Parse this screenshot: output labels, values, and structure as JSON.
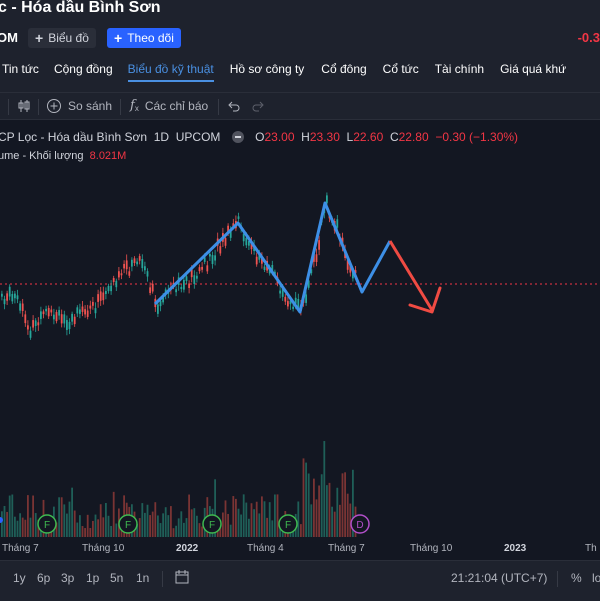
{
  "header": {
    "title": "c - Hóa dầu Bình Sơn",
    "ticker": "OM",
    "chart_button": "Biểu đồ",
    "follow_button": "Theo dõi",
    "change": "-0.3"
  },
  "tabs": [
    "Tin tức",
    "Cộng đồng",
    "Biểu đồ kỹ thuật",
    "Hồ sơ công ty",
    "Cổ đông",
    "Cổ tức",
    "Tài chính",
    "Giá quá khứ"
  ],
  "active_tab": "Biểu đồ kỹ thuật",
  "toolbar": {
    "compare": "So sánh",
    "indicators": "Các chỉ báo"
  },
  "legend": {
    "name": "CP Lọc - Hóa dầu Bình Sơn",
    "interval": "1D",
    "exchange": "UPCOM",
    "o_label": "O",
    "o": "23.00",
    "h_label": "H",
    "h": "23.30",
    "l_label": "L",
    "l": "22.60",
    "c_label": "C",
    "c": "22.80",
    "change": "−0.30 (−1.30%)",
    "volume_label": "ume - Khối lượng",
    "volume_value": "8.021M"
  },
  "xaxis": [
    "Tháng 7",
    "Tháng 10",
    "2022",
    "Tháng 4",
    "Tháng 7",
    "Tháng 10",
    "2023",
    "Th"
  ],
  "events": [
    "F",
    "F",
    "F",
    "F",
    "D"
  ],
  "bottom": {
    "ranges": [
      "1y",
      "6p",
      "3p",
      "1p",
      "5n",
      "1n"
    ],
    "time": "21:21:04 (UTC+7)",
    "percent": "%",
    "log": "lo"
  },
  "colors": {
    "up": "#26a69a",
    "down": "#ef5350",
    "accent": "#2962ff",
    "pattern_blue": "#3d8fe6",
    "pattern_red": "#f04b43"
  }
}
